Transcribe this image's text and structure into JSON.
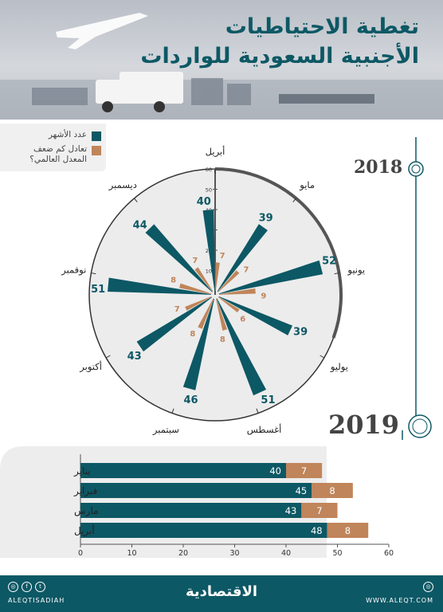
{
  "header": {
    "title_line1": "تغطية الاحتياطيات",
    "title_line2": "الأجنبية السعودية للواردات"
  },
  "legend": [
    {
      "label": "عدد الأشهر",
      "color": "#0d5865"
    },
    {
      "label": "تعادل كم ضعف المعدل العالمي؟",
      "color": "#c0855a"
    }
  ],
  "colors": {
    "primary": "#0d5865",
    "secondary": "#c0855a"
  },
  "chart_data": [
    {
      "type": "polar-bar",
      "year": "2018",
      "categories": [
        "أبريل",
        "مايو",
        "يونيو",
        "يوليو",
        "أغسطس",
        "سبتمبر",
        "أكتوبر",
        "نوفمبر",
        "ديسمبر"
      ],
      "series": [
        {
          "name": "عدد الأشهر",
          "values": [
            40,
            39,
            52,
            39,
            51,
            46,
            43,
            51,
            44
          ]
        },
        {
          "name": "تعادل كم ضعف المعدل العالمي؟",
          "values": [
            7,
            7,
            9,
            6,
            8,
            8,
            7,
            8,
            7
          ]
        }
      ],
      "radial_ticks": [
        10,
        20,
        30,
        40,
        50,
        60
      ],
      "rlim": [
        0,
        60
      ]
    },
    {
      "type": "bar",
      "orientation": "horizontal",
      "stacked": true,
      "year": "2019",
      "categories": [
        "يناير",
        "فبراير",
        "مارس",
        "أبريل"
      ],
      "series": [
        {
          "name": "عدد الأشهر",
          "values": [
            40,
            45,
            43,
            48
          ]
        },
        {
          "name": "تعادل كم ضعف المعدل العالمي؟",
          "values": [
            7,
            8,
            7,
            8
          ]
        }
      ],
      "xticks": [
        0,
        10,
        20,
        30,
        40,
        50,
        60
      ],
      "xlim": [
        0,
        60
      ]
    }
  ],
  "footer": {
    "brand": "الاقتصادية",
    "handle": "ALEQTISADIAH",
    "website": "WWW.ALEQT.COM"
  }
}
